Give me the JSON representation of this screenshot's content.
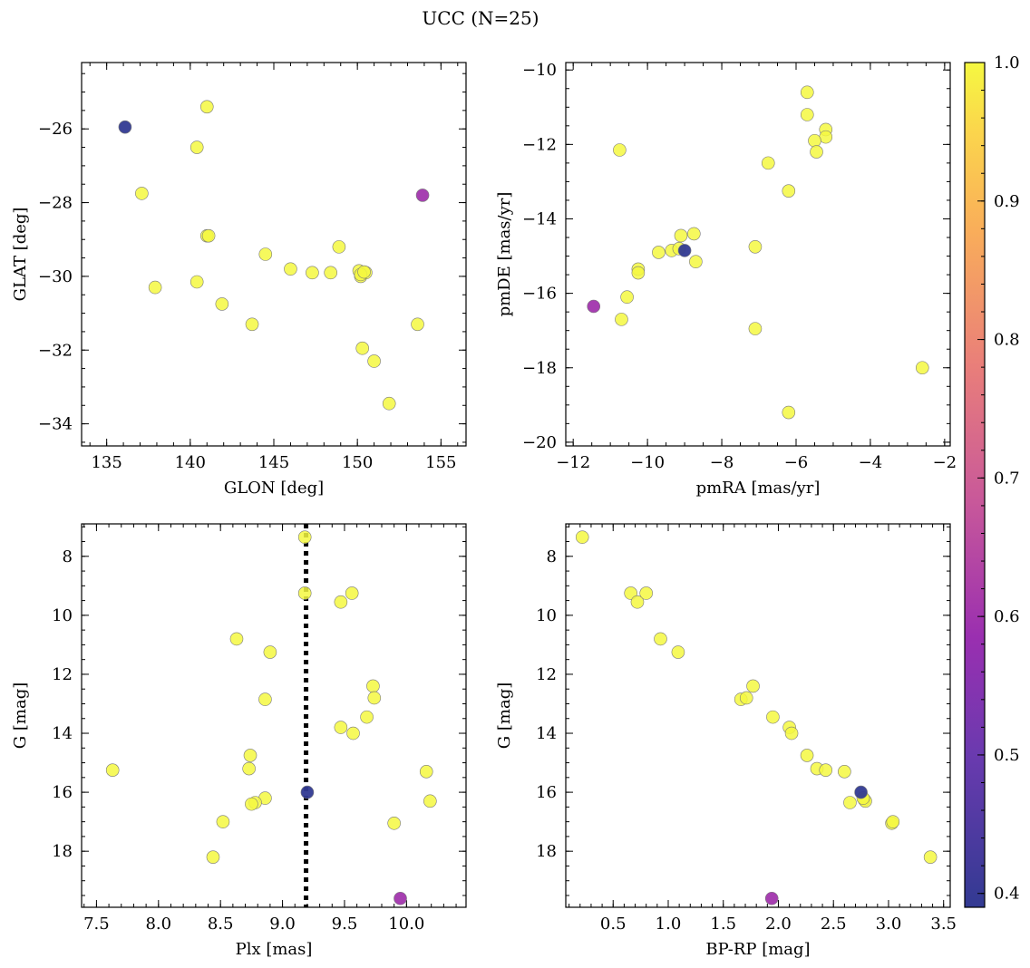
{
  "figure": {
    "title": "UCC (N=25)"
  },
  "colorbar": {
    "min": 0.39,
    "max": 1.0,
    "ticks": [
      0.4,
      0.5,
      0.6,
      0.7,
      0.8,
      0.9,
      1.0
    ],
    "tick_labels": [
      "0.4",
      "0.5",
      "0.6",
      "0.7",
      "0.8",
      "0.9",
      "1.0"
    ],
    "stops": [
      {
        "v": 0.0,
        "c": "#323a92"
      },
      {
        "v": 0.18,
        "c": "#6a3aaf"
      },
      {
        "v": 0.32,
        "c": "#9a2fb0"
      },
      {
        "v": 0.48,
        "c": "#c8589a"
      },
      {
        "v": 0.64,
        "c": "#e97e7a"
      },
      {
        "v": 0.8,
        "c": "#f9ad5a"
      },
      {
        "v": 0.92,
        "c": "#fbd64c"
      },
      {
        "v": 1.0,
        "c": "#f5f841"
      }
    ]
  },
  "chart_data": [
    {
      "type": "scatter",
      "name": "glon-glat",
      "xlabel": "GLON [deg]",
      "ylabel": "GLAT [deg]",
      "xlim": [
        133.5,
        156.5
      ],
      "ylim": [
        -34.6,
        -24.2
      ],
      "yinvert": false,
      "xticks": [
        135,
        140,
        145,
        150,
        155
      ],
      "xtick_labels": [
        "135",
        "140",
        "145",
        "150",
        "155"
      ],
      "yticks": [
        -26,
        -28,
        -30,
        -32,
        -34
      ],
      "ytick_labels": [
        "−26",
        "−28",
        "−30",
        "−32",
        "−34"
      ],
      "xminor": 1,
      "yminor": 0.5,
      "points": [
        [
          136.1,
          -25.95,
          0.39
        ],
        [
          153.9,
          -27.8,
          0.6
        ],
        [
          141.0,
          -25.4,
          1.0
        ],
        [
          140.4,
          -26.5,
          1.0
        ],
        [
          137.1,
          -27.75,
          1.0
        ],
        [
          141.0,
          -28.9,
          1.0
        ],
        [
          141.1,
          -28.9,
          1.0
        ],
        [
          144.5,
          -29.4,
          1.0
        ],
        [
          148.9,
          -29.2,
          1.0
        ],
        [
          146.0,
          -29.8,
          1.0
        ],
        [
          147.3,
          -29.9,
          1.0
        ],
        [
          148.4,
          -29.9,
          1.0
        ],
        [
          150.1,
          -29.85,
          1.0
        ],
        [
          150.2,
          -30.0,
          1.0
        ],
        [
          150.5,
          -29.9,
          1.0
        ],
        [
          137.9,
          -30.3,
          1.0
        ],
        [
          140.4,
          -30.15,
          1.0
        ],
        [
          141.9,
          -30.75,
          1.0
        ],
        [
          143.7,
          -31.3,
          1.0
        ],
        [
          153.6,
          -31.3,
          1.0
        ],
        [
          150.3,
          -31.95,
          1.0
        ],
        [
          151.0,
          -32.3,
          1.0
        ],
        [
          151.9,
          -33.45,
          1.0
        ],
        [
          150.2,
          -29.95,
          1.0
        ],
        [
          150.4,
          -29.88,
          1.0
        ]
      ]
    },
    {
      "type": "scatter",
      "name": "pmra-pmde",
      "xlabel": "pmRA [mas/yr]",
      "ylabel": "pmDE [mas/yr]",
      "xlim": [
        -12.2,
        -1.85
      ],
      "ylim": [
        -20.1,
        -9.8
      ],
      "yinvert": false,
      "xticks": [
        -12,
        -10,
        -8,
        -6,
        -4,
        -2
      ],
      "xtick_labels": [
        "−12",
        "−10",
        "−8",
        "−6",
        "−4",
        "−2"
      ],
      "yticks": [
        -10,
        -12,
        -14,
        -16,
        -18,
        -20
      ],
      "ytick_labels": [
        "−10",
        "−12",
        "−14",
        "−16",
        "−18",
        "−20"
      ],
      "xminor": 0.5,
      "yminor": 0.5,
      "points": [
        [
          -9.0,
          -14.85,
          0.39
        ],
        [
          -11.45,
          -16.35,
          0.6
        ],
        [
          -5.7,
          -10.6,
          1.0
        ],
        [
          -5.7,
          -11.2,
          1.0
        ],
        [
          -5.2,
          -11.6,
          1.0
        ],
        [
          -5.2,
          -11.8,
          1.0
        ],
        [
          -5.5,
          -11.9,
          1.0
        ],
        [
          -5.45,
          -12.2,
          1.0
        ],
        [
          -10.75,
          -12.15,
          1.0
        ],
        [
          -6.75,
          -12.5,
          1.0
        ],
        [
          -6.2,
          -13.25,
          1.0
        ],
        [
          -9.1,
          -14.45,
          1.0
        ],
        [
          -8.75,
          -14.4,
          1.0
        ],
        [
          -7.1,
          -14.75,
          1.0
        ],
        [
          -9.7,
          -14.9,
          1.0
        ],
        [
          -9.35,
          -14.85,
          1.0
        ],
        [
          -9.15,
          -14.8,
          1.0
        ],
        [
          -8.7,
          -15.15,
          1.0
        ],
        [
          -10.25,
          -15.35,
          1.0
        ],
        [
          -10.25,
          -15.45,
          1.0
        ],
        [
          -10.55,
          -16.1,
          1.0
        ],
        [
          -10.7,
          -16.7,
          1.0
        ],
        [
          -7.1,
          -16.95,
          1.0
        ],
        [
          -2.6,
          -18.0,
          1.0
        ],
        [
          -6.2,
          -19.2,
          1.0
        ]
      ]
    },
    {
      "type": "scatter",
      "name": "plx-g",
      "xlabel": "Plx [mas]",
      "ylabel": "G [mag]",
      "xlim": [
        7.38,
        10.48
      ],
      "ylim": [
        6.9,
        19.9
      ],
      "yinvert": true,
      "xticks": [
        7.5,
        8.0,
        8.5,
        9.0,
        9.5,
        10.0
      ],
      "xtick_labels": [
        "7.5",
        "8.0",
        "8.5",
        "9.0",
        "9.5",
        "10.0"
      ],
      "yticks": [
        8,
        10,
        12,
        14,
        16,
        18
      ],
      "ytick_labels": [
        "8",
        "10",
        "12",
        "14",
        "16",
        "18"
      ],
      "xminor": 0.1,
      "yminor": 0.5,
      "vline": 9.19,
      "points": [
        [
          9.2,
          16.0,
          0.39
        ],
        [
          9.95,
          19.6,
          0.6
        ],
        [
          9.18,
          7.35,
          1.0
        ],
        [
          9.18,
          9.25,
          1.0
        ],
        [
          9.56,
          9.25,
          1.0
        ],
        [
          9.47,
          9.55,
          1.0
        ],
        [
          8.63,
          10.8,
          1.0
        ],
        [
          8.9,
          11.25,
          1.0
        ],
        [
          9.73,
          12.4,
          1.0
        ],
        [
          9.74,
          12.8,
          1.0
        ],
        [
          8.86,
          12.85,
          1.0
        ],
        [
          9.68,
          13.45,
          1.0
        ],
        [
          9.47,
          13.8,
          1.0
        ],
        [
          9.57,
          14.0,
          1.0
        ],
        [
          8.74,
          14.75,
          1.0
        ],
        [
          8.73,
          15.2,
          1.0
        ],
        [
          7.63,
          15.25,
          1.0
        ],
        [
          10.16,
          15.3,
          1.0
        ],
        [
          8.86,
          16.2,
          1.0
        ],
        [
          10.19,
          16.3,
          1.0
        ],
        [
          8.78,
          16.35,
          1.0
        ],
        [
          8.75,
          16.4,
          1.0
        ],
        [
          8.52,
          17.0,
          1.0
        ],
        [
          9.9,
          17.05,
          1.0
        ],
        [
          8.44,
          18.2,
          1.0
        ]
      ]
    },
    {
      "type": "scatter",
      "name": "bprp-g",
      "xlabel": "BP-RP [mag]",
      "ylabel": "G [mag]",
      "xlim": [
        0.07,
        3.56
      ],
      "ylim": [
        6.9,
        19.9
      ],
      "yinvert": true,
      "xticks": [
        0.5,
        1.0,
        1.5,
        2.0,
        2.5,
        3.0,
        3.5
      ],
      "xtick_labels": [
        "0.5",
        "1.0",
        "1.5",
        "2.0",
        "2.5",
        "3.0",
        "3.5"
      ],
      "yticks": [
        8,
        10,
        12,
        14,
        16,
        18
      ],
      "ytick_labels": [
        "8",
        "10",
        "12",
        "14",
        "16",
        "18"
      ],
      "xminor": 0.1,
      "yminor": 0.5,
      "points": [
        [
          2.75,
          16.0,
          0.39
        ],
        [
          1.94,
          19.6,
          0.6
        ],
        [
          0.22,
          7.35,
          1.0
        ],
        [
          0.66,
          9.25,
          1.0
        ],
        [
          0.8,
          9.25,
          1.0
        ],
        [
          0.72,
          9.55,
          1.0
        ],
        [
          0.93,
          10.8,
          1.0
        ],
        [
          1.09,
          11.25,
          1.0
        ],
        [
          1.77,
          12.4,
          1.0
        ],
        [
          1.66,
          12.85,
          1.0
        ],
        [
          1.71,
          12.8,
          1.0
        ],
        [
          1.95,
          13.45,
          1.0
        ],
        [
          2.1,
          13.8,
          1.0
        ],
        [
          2.12,
          14.0,
          1.0
        ],
        [
          2.26,
          14.75,
          1.0
        ],
        [
          2.35,
          15.2,
          1.0
        ],
        [
          2.43,
          15.25,
          1.0
        ],
        [
          2.6,
          15.3,
          1.0
        ],
        [
          2.65,
          16.35,
          1.0
        ],
        [
          2.78,
          16.25,
          1.0
        ],
        [
          2.79,
          16.3,
          1.0
        ],
        [
          3.03,
          17.05,
          1.0
        ],
        [
          3.04,
          17.0,
          1.0
        ],
        [
          3.38,
          18.2,
          1.0
        ],
        [
          2.77,
          16.2,
          1.0
        ]
      ]
    }
  ]
}
